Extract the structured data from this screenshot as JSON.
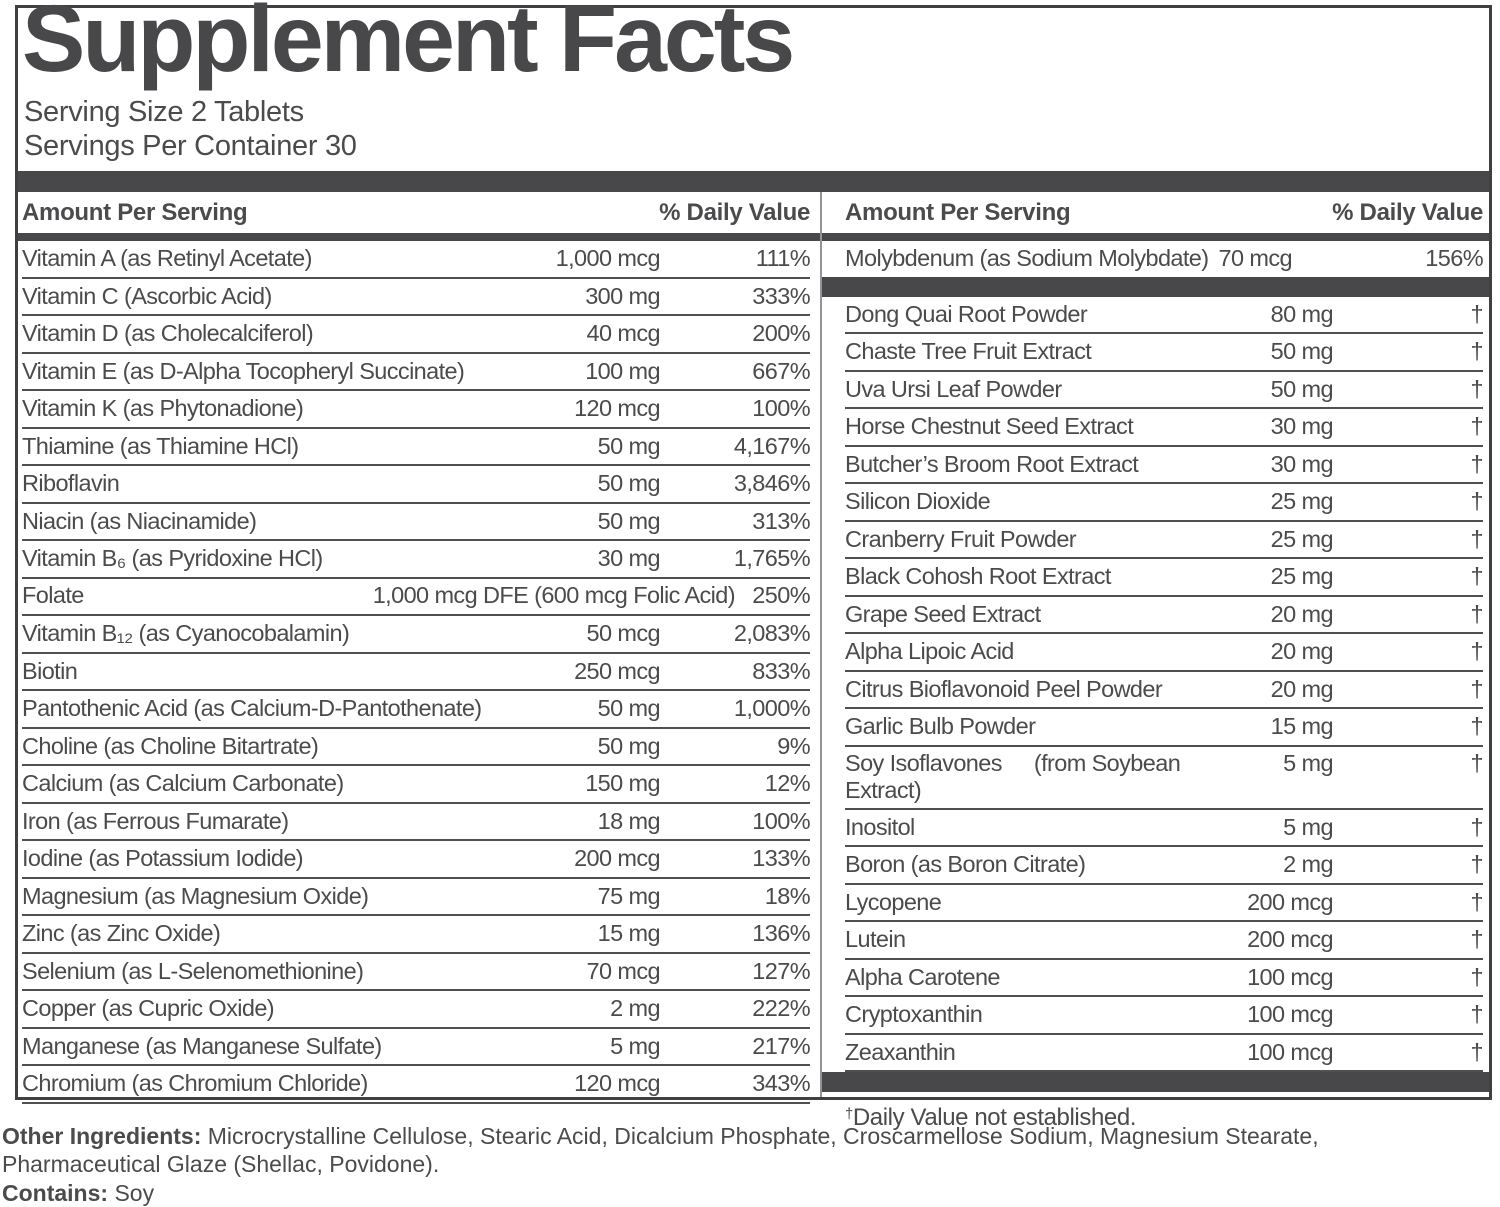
{
  "title": "Supplement Facts",
  "serving_size": "Serving Size 2 Tablets",
  "servings_per_container": "Servings Per Container 30",
  "headers": {
    "amount": "Amount Per Serving",
    "daily_value": "% Daily Value"
  },
  "colors": {
    "ink": "#4b4b4d",
    "bar": "#48484a",
    "border": "#404042",
    "divider": "#949496"
  },
  "left_rows": [
    {
      "name": "Vitamin A (as Retinyl Acetate)",
      "amount": "1,000 mcg",
      "dv": "111%"
    },
    {
      "name": "Vitamin C (Ascorbic Acid)",
      "amount": "300 mg",
      "dv": "333%"
    },
    {
      "name": "Vitamin D (as Cholecalciferol)",
      "amount": "40 mcg",
      "dv": "200%"
    },
    {
      "name": "Vitamin E (as D-Alpha Tocopheryl Succinate)",
      "amount": "100 mg",
      "dv": "667%"
    },
    {
      "name": "Vitamin K (as Phytonadione)",
      "amount": "120 mcg",
      "dv": "100%"
    },
    {
      "name": "Thiamine (as Thiamine HCl)",
      "amount": "50 mg",
      "dv": "4,167%"
    },
    {
      "name": "Riboflavin",
      "amount": "50 mg",
      "dv": "3,846%"
    },
    {
      "name": "Niacin (as Niacinamide)",
      "amount": "50 mg",
      "dv": "313%"
    },
    {
      "name": "Vitamin B₆ (as Pyridoxine HCl)",
      "amount": "30 mg",
      "dv": "1,765%"
    },
    {
      "name": "Folate",
      "amount": "1,000 mcg DFE",
      "amount2": "(600 mcg Folic Acid)",
      "dv": "250%"
    },
    {
      "name": "Vitamin B₁₂ (as Cyanocobalamin)",
      "amount": "50 mcg",
      "dv": "2,083%"
    },
    {
      "name": "Biotin",
      "amount": "250 mcg",
      "dv": "833%"
    },
    {
      "name": "Pantothenic Acid (as Calcium-D-Pantothenate)",
      "amount": "50 mg",
      "dv": "1,000%"
    },
    {
      "name": "Choline (as Choline Bitartrate)",
      "amount": "50 mg",
      "dv": "9%"
    },
    {
      "name": "Calcium (as Calcium Carbonate)",
      "amount": "150 mg",
      "dv": "12%"
    },
    {
      "name": "Iron (as Ferrous Fumarate)",
      "amount": "18 mg",
      "dv": "100%"
    },
    {
      "name": "Iodine (as Potassium Iodide)",
      "amount": "200 mcg",
      "dv": "133%"
    },
    {
      "name": "Magnesium (as Magnesium Oxide)",
      "amount": "75 mg",
      "dv": "18%"
    },
    {
      "name": "Zinc (as Zinc Oxide)",
      "amount": "15 mg",
      "dv": "136%"
    },
    {
      "name": "Selenium (as L-Selenomethionine)",
      "amount": "70 mcg",
      "dv": "127%"
    },
    {
      "name": "Copper (as Cupric Oxide)",
      "amount": "2 mg",
      "dv": "222%"
    },
    {
      "name": "Manganese (as Manganese Sulfate)",
      "amount": "5 mg",
      "dv": "217%"
    },
    {
      "name": "Chromium (as Chromium Chloride)",
      "amount": "120 mcg",
      "dv": "343%"
    }
  ],
  "right_top": {
    "name": "Molybdenum (as Sodium Molybdate)",
    "amount": "70 mcg",
    "dv": "156%"
  },
  "right_rows": [
    {
      "name": "Dong Quai Root Powder",
      "amount": "80 mg",
      "dv": "†"
    },
    {
      "name": "Chaste Tree Fruit Extract",
      "amount": "50 mg",
      "dv": "†"
    },
    {
      "name": "Uva Ursi Leaf Powder",
      "amount": "50 mg",
      "dv": "†"
    },
    {
      "name": "Horse Chestnut Seed Extract",
      "amount": "30 mg",
      "dv": "†"
    },
    {
      "name": "Butcher’s Broom Root Extract",
      "amount": "30 mg",
      "dv": "†"
    },
    {
      "name": "Silicon Dioxide",
      "amount": "25 mg",
      "dv": "†"
    },
    {
      "name": "Cranberry Fruit Powder",
      "amount": "25 mg",
      "dv": "†"
    },
    {
      "name": "Black Cohosh Root Extract",
      "amount": "25 mg",
      "dv": "†"
    },
    {
      "name": "Grape Seed Extract",
      "amount": "20 mg",
      "dv": "†"
    },
    {
      "name": "Alpha Lipoic Acid",
      "amount": "20 mg",
      "dv": "†"
    },
    {
      "name": "Citrus Bioflavonoid Peel Powder",
      "amount": "20 mg",
      "dv": "†"
    },
    {
      "name": "Garlic Bulb Powder",
      "amount": "15 mg",
      "dv": "†"
    },
    {
      "name": "Soy Isoflavones",
      "name2": "(from Soybean Extract)",
      "amount": "5 mg",
      "dv": "†"
    },
    {
      "name": "Inositol",
      "amount": "5 mg",
      "dv": "†"
    },
    {
      "name": "Boron (as Boron Citrate)",
      "amount": "2 mg",
      "dv": "†"
    },
    {
      "name": "Lycopene",
      "amount": "200 mcg",
      "dv": "†"
    },
    {
      "name": "Lutein",
      "amount": "200 mcg",
      "dv": "†"
    },
    {
      "name": "Alpha Carotene",
      "amount": "100 mcg",
      "dv": "†"
    },
    {
      "name": "Cryptoxanthin",
      "amount": "100 mcg",
      "dv": "†"
    },
    {
      "name": "Zeaxanthin",
      "amount": "100 mcg",
      "dv": "†"
    }
  ],
  "footnote": {
    "symbol": "†",
    "text": "Daily Value not established."
  },
  "other_ingredients": {
    "label": "Other Ingredients:",
    "text": " Microcrystalline Cellulose, Stearic Acid, Dicalcium Phosphate, Croscarmellose Sodium, Magnesium Stearate, Pharmaceutical Glaze (Shellac, Povidone)."
  },
  "contains": {
    "label": "Contains:",
    "text": " Soy"
  }
}
